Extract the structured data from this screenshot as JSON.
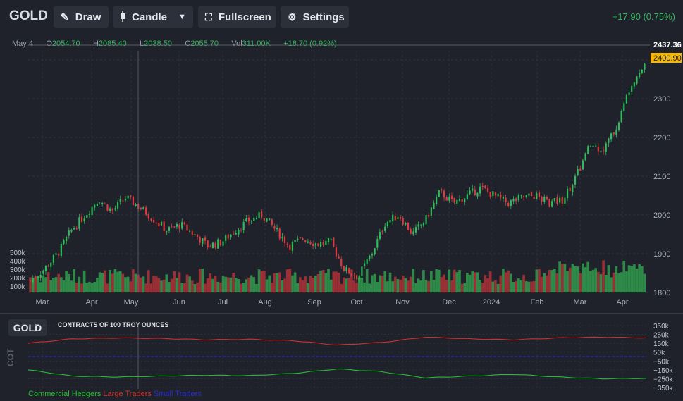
{
  "toolbar": {
    "symbol": "GOLD",
    "draw_label": "Draw",
    "candle_label": "Candle",
    "fullscreen_label": "Fullscreen",
    "settings_label": "Settings",
    "change": "+17.90 (0.75%)"
  },
  "ohlc_legend": {
    "date": "May 4",
    "open_key": "O",
    "open": "2054.70",
    "high_key": "H",
    "high": "2085.40",
    "low_key": "L",
    "low": "2038.50",
    "close_key": "C",
    "close": "2055.70",
    "vol_key": "Vol",
    "vol": "311.00K",
    "change": "+18.70 (0.92%)"
  },
  "price_labels": {
    "crosshair": "2437.36",
    "last": "2400.90"
  },
  "cot": {
    "tag": "GOLD",
    "title": "CONTRACTS OF 100 TROY OUNCES",
    "vertical_label": "COT",
    "legend": [
      {
        "name": "Commercial Hedgers",
        "color": "#22c02e"
      },
      {
        "name": "Large Traders",
        "color": "#d0302c"
      },
      {
        "name": "Small Traders",
        "color": "#2a2ad8"
      }
    ],
    "y_ticks": [
      "350k",
      "250k",
      "150k",
      "50k",
      "−50k",
      "−150k",
      "−250k",
      "−350k"
    ]
  },
  "colors": {
    "up": "#2ebd5b",
    "down": "#e0393f",
    "up_volume": "#2e8a48",
    "down_volume": "#9a2f36",
    "background": "#1f222a",
    "last_price": "#f5b700"
  },
  "chart_data": {
    "type": "candlestick",
    "x_ticks": [
      "Mar",
      "Apr",
      "May",
      "Jun",
      "Jul",
      "Aug",
      "Sep",
      "Oct",
      "Nov",
      "Dec",
      "2024",
      "Feb",
      "Mar",
      "Apr"
    ],
    "y_ticks": [
      2400,
      2300,
      2200,
      2100,
      2000,
      1900,
      1800
    ],
    "ylim": [
      1800,
      2440
    ],
    "volume_ticks": [
      "500k",
      "400k",
      "300k",
      "200k",
      "100k"
    ],
    "close_path": [
      [
        "Mar",
        1830
      ],
      [
        "Mar",
        1860
      ],
      [
        "Mar",
        1900
      ],
      [
        "Mar",
        1960
      ],
      [
        "Apr",
        2000
      ],
      [
        "Apr",
        2040
      ],
      [
        "Apr",
        2010
      ],
      [
        "May",
        2045
      ],
      [
        "May",
        2020
      ],
      [
        "May",
        1990
      ],
      [
        "Jun",
        1960
      ],
      [
        "Jun",
        1975
      ],
      [
        "Jun",
        1950
      ],
      [
        "Jul",
        1920
      ],
      [
        "Jul",
        1930
      ],
      [
        "Jul",
        1960
      ],
      [
        "Aug",
        1985
      ],
      [
        "Aug",
        2000
      ],
      [
        "Aug",
        1960
      ],
      [
        "Aug",
        1920
      ],
      [
        "Sep",
        1940
      ],
      [
        "Sep",
        1925
      ],
      [
        "Sep",
        1930
      ],
      [
        "Oct",
        1860
      ],
      [
        "Oct",
        1840
      ],
      [
        "Oct",
        1900
      ],
      [
        "Nov",
        1980
      ],
      [
        "Nov",
        2000
      ],
      [
        "Nov",
        1950
      ],
      [
        "Nov",
        1990
      ],
      [
        "Dec",
        2060
      ],
      [
        "Dec",
        2030
      ],
      [
        "Dec",
        2050
      ],
      [
        "2024",
        2070
      ],
      [
        "2024",
        2050
      ],
      [
        "2024",
        2030
      ],
      [
        "Feb",
        2045
      ],
      [
        "Feb",
        2050
      ],
      [
        "Feb",
        2030
      ],
      [
        "Mar",
        2040
      ],
      [
        "Mar",
        2100
      ],
      [
        "Mar",
        2180
      ],
      [
        "Mar",
        2170
      ],
      [
        "Apr",
        2230
      ],
      [
        "Apr",
        2340
      ],
      [
        "Apr",
        2390
      ]
    ],
    "cot_series": [
      {
        "name": "Large Traders",
        "values": [
          150,
          200,
          210,
          205,
          190,
          195,
          180,
          130,
          160,
          220,
          200,
          190,
          210,
          220,
          210
        ]
      },
      {
        "name": "Small Traders",
        "values": [
          0,
          0,
          0,
          0,
          0,
          0,
          0,
          0,
          0,
          0,
          0,
          0,
          0,
          0,
          0
        ]
      },
      {
        "name": "Commercial Hedgers",
        "values": [
          -150,
          -220,
          -230,
          -220,
          -210,
          -215,
          -190,
          -140,
          -170,
          -240,
          -220,
          -200,
          -230,
          -250,
          -245
        ]
      }
    ]
  }
}
